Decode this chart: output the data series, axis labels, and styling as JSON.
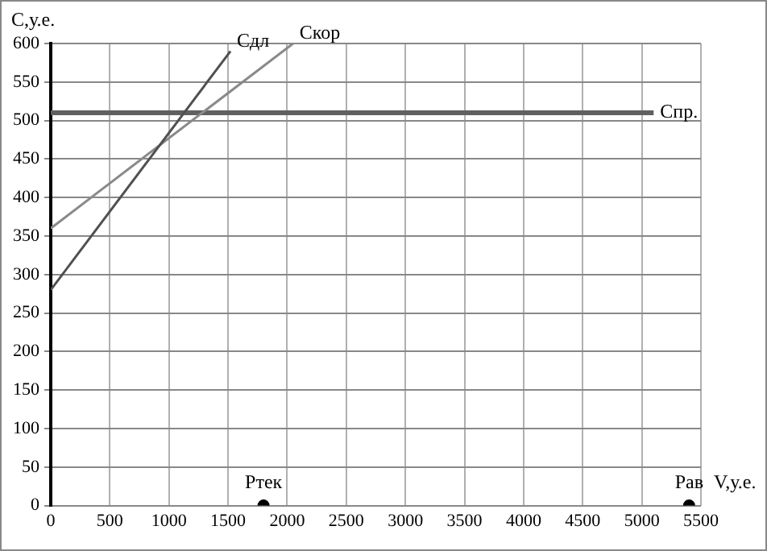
{
  "chart_data": {
    "type": "line",
    "xlabel": "V,у.е.",
    "ylabel": "С,у.е.",
    "xlim": [
      0,
      5500
    ],
    "xticks": [
      0,
      500,
      1000,
      1500,
      2000,
      2500,
      3000,
      3500,
      4000,
      4500,
      5000,
      5500
    ],
    "ylim": [
      0,
      600
    ],
    "yticks": [
      0,
      50,
      100,
      150,
      200,
      250,
      300,
      350,
      400,
      450,
      500,
      550,
      600
    ],
    "grid": true,
    "legend": false,
    "marker": "none",
    "series": [
      {
        "name": "Сдл",
        "color": "#505050",
        "x": [
          0,
          1520
        ],
        "values": [
          280,
          590
        ]
      },
      {
        "name": "Скор",
        "color": "#8a8a8a",
        "x": [
          0,
          2050
        ],
        "values": [
          360,
          600
        ]
      },
      {
        "name": "Спр.",
        "color": "#606060",
        "x": [
          0,
          5100
        ],
        "values": [
          510,
          510
        ]
      },
      {
        "name": "Ртек",
        "type": "scatter",
        "marker": "circle",
        "color": "#000000",
        "x": [
          1800
        ],
        "values": [
          0
        ]
      },
      {
        "name": "Рав",
        "type": "scatter",
        "marker": "circle",
        "color": "#000000",
        "x": [
          5400
        ],
        "values": [
          0
        ]
      }
    ]
  }
}
